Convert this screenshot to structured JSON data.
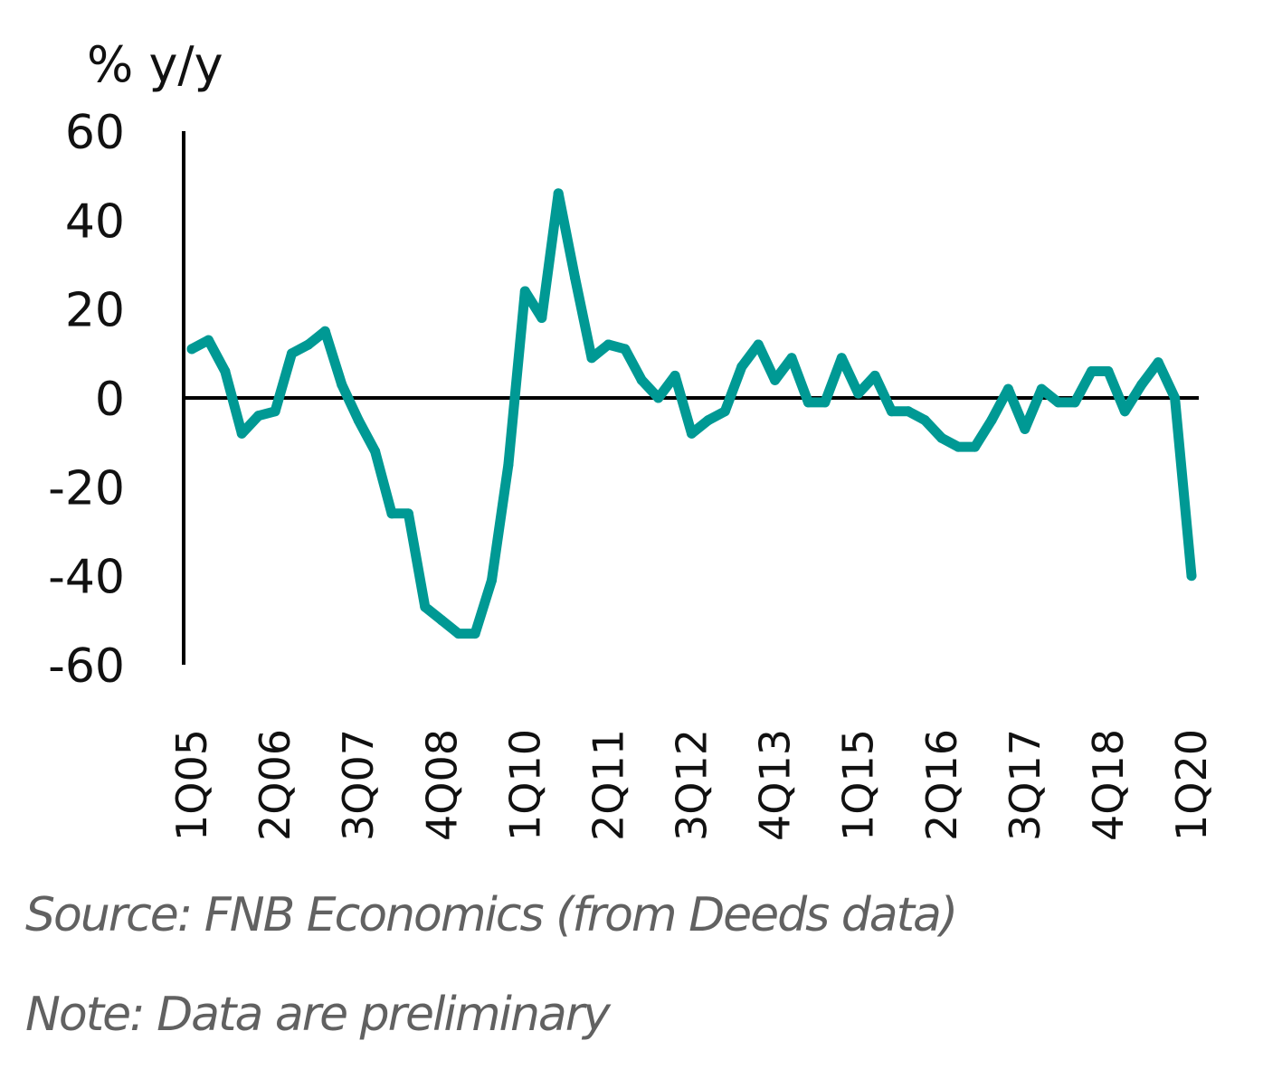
{
  "chart_data": {
    "type": "line",
    "title": "",
    "ylabel": "% y/y",
    "xlabel": "",
    "ylim": [
      -60,
      60
    ],
    "yticks": [
      60,
      40,
      20,
      0,
      -20,
      -40,
      -60
    ],
    "xtick_labels": [
      "1Q05",
      "2Q06",
      "3Q07",
      "4Q08",
      "1Q10",
      "2Q11",
      "3Q12",
      "4Q13",
      "1Q15",
      "2Q16",
      "3Q17",
      "4Q18",
      "1Q20"
    ],
    "xtick_indices": [
      0,
      5,
      10,
      15,
      20,
      25,
      30,
      35,
      40,
      45,
      50,
      55,
      60
    ],
    "grid": false,
    "zero_line": true,
    "legend": "none",
    "x": [
      "1Q05",
      "2Q05",
      "3Q05",
      "4Q05",
      "1Q06",
      "2Q06",
      "3Q06",
      "4Q06",
      "1Q07",
      "2Q07",
      "3Q07",
      "4Q07",
      "1Q08",
      "2Q08",
      "3Q08",
      "4Q08",
      "1Q09",
      "2Q09",
      "3Q09",
      "4Q09",
      "1Q10",
      "2Q10",
      "3Q10",
      "4Q10",
      "1Q11",
      "2Q11",
      "3Q11",
      "4Q11",
      "1Q12",
      "2Q12",
      "3Q12",
      "4Q12",
      "1Q13",
      "2Q13",
      "3Q13",
      "4Q13",
      "1Q14",
      "2Q14",
      "3Q14",
      "4Q14",
      "1Q15",
      "2Q15",
      "3Q15",
      "4Q15",
      "1Q16",
      "2Q16",
      "3Q16",
      "4Q16",
      "1Q17",
      "2Q17",
      "3Q17",
      "4Q17",
      "1Q18",
      "2Q18",
      "3Q18",
      "4Q18",
      "1Q19",
      "2Q19",
      "3Q19",
      "4Q19",
      "1Q20"
    ],
    "series": [
      {
        "name": "% y/y",
        "color": "#009994",
        "values": [
          11,
          13,
          6,
          -8,
          -4,
          -3,
          10,
          12,
          15,
          3,
          -5,
          -12,
          -26,
          -26,
          -47,
          -50,
          -53,
          -53,
          -41,
          -15,
          24,
          18,
          46,
          27,
          9,
          12,
          11,
          4,
          0,
          5,
          -8,
          -5,
          -3,
          7,
          12,
          4,
          9,
          -1,
          -1,
          9,
          1,
          5,
          -3,
          -3,
          -5,
          -9,
          -11,
          -11,
          -5,
          2,
          -7,
          2,
          -1,
          -1,
          6,
          6,
          -3,
          3,
          8,
          0,
          -40
        ]
      }
    ],
    "annotations": []
  },
  "footer": {
    "source": "Source: FNB Economics (from Deeds data)",
    "note": "Note: Data are preliminary"
  },
  "colors": {
    "line": "#009994",
    "axis": "#000000",
    "text": "#111111",
    "footnote": "#616161"
  }
}
